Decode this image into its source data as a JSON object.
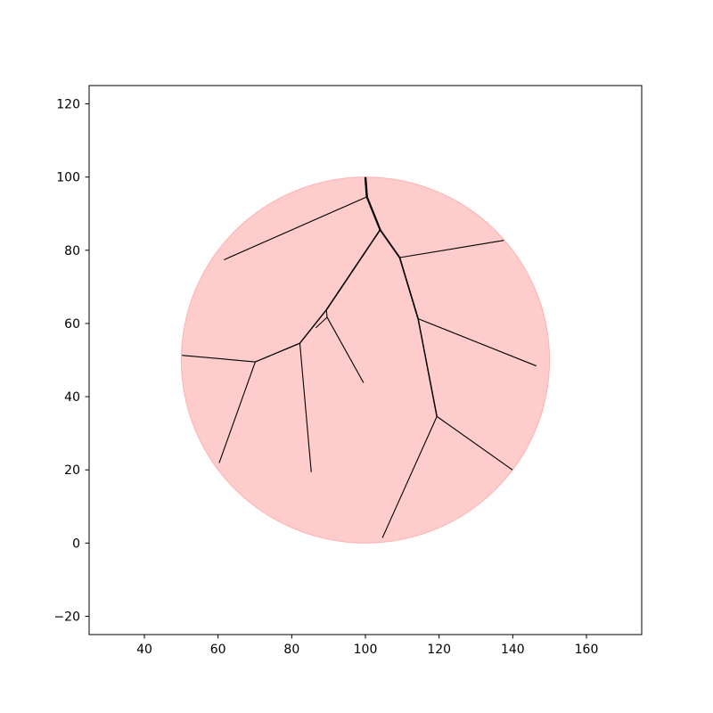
{
  "chart_data": {
    "type": "line",
    "title": "",
    "xlabel": "",
    "ylabel": "",
    "xlim": [
      25,
      175
    ],
    "ylim": [
      -25,
      125
    ],
    "grid": false,
    "xticks": [
      40,
      60,
      80,
      100,
      120,
      140,
      160
    ],
    "yticks": [
      -20,
      0,
      20,
      40,
      60,
      80,
      100,
      120
    ],
    "xtick_labels": [
      "40",
      "60",
      "80",
      "100",
      "120",
      "140",
      "160"
    ],
    "ytick_labels": [
      "−20",
      "0",
      "20",
      "40",
      "60",
      "80",
      "100",
      "120"
    ],
    "circle": {
      "cx": 100,
      "cy": 50,
      "r": 50,
      "fill": "#ff0000",
      "fill_opacity": 0.2
    },
    "branches": [
      {
        "id": "trunk-1",
        "points": [
          [
            100,
            100
          ],
          [
            100.4,
            94.6
          ]
        ],
        "weight": 2.4
      },
      {
        "id": "trunk-2",
        "points": [
          [
            100.4,
            94.6
          ],
          [
            104,
            85.6
          ]
        ],
        "weight": 2.2
      },
      {
        "id": "trunk-3",
        "points": [
          [
            104,
            85.6
          ],
          [
            109.3,
            78
          ]
        ],
        "weight": 1.9
      },
      {
        "id": "trunk-4",
        "points": [
          [
            109.3,
            78
          ],
          [
            114.3,
            61.3
          ]
        ],
        "weight": 1.7
      },
      {
        "id": "trunk-5",
        "points": [
          [
            114.3,
            61.3
          ],
          [
            119.4,
            34.6
          ]
        ],
        "weight": 1.5
      },
      {
        "id": "branch-ul",
        "points": [
          [
            100.4,
            94.6
          ],
          [
            61.6,
            77.4
          ]
        ],
        "weight": 1.1
      },
      {
        "id": "branch-upper-right",
        "points": [
          [
            109.3,
            78
          ],
          [
            137.6,
            82.7
          ]
        ],
        "weight": 1.1
      },
      {
        "id": "branch-mid-right",
        "points": [
          [
            114.3,
            61.3
          ],
          [
            146.4,
            48.4
          ]
        ],
        "weight": 1.1
      },
      {
        "id": "branch-lower-right",
        "points": [
          [
            119.4,
            34.6
          ],
          [
            139.9,
            20
          ]
        ],
        "weight": 1.1
      },
      {
        "id": "branch-bottom",
        "points": [
          [
            119.4,
            34.6
          ],
          [
            104.6,
            1.4
          ]
        ],
        "weight": 1.1
      },
      {
        "id": "branch-left-trunk",
        "points": [
          [
            104,
            85.6
          ],
          [
            89.4,
            63.7
          ]
        ],
        "weight": 1.6
      },
      {
        "id": "branch-left-a",
        "points": [
          [
            89.4,
            63.7
          ],
          [
            82.2,
            54.6
          ]
        ],
        "weight": 1.4
      },
      {
        "id": "branch-left-b",
        "points": [
          [
            82.2,
            54.6
          ],
          [
            70.1,
            49.5
          ]
        ],
        "weight": 1.3
      },
      {
        "id": "branch-far-left",
        "points": [
          [
            70.1,
            49.5
          ],
          [
            50.2,
            51.3
          ]
        ],
        "weight": 1.1
      },
      {
        "id": "branch-lower-left",
        "points": [
          [
            70.1,
            49.5
          ],
          [
            60.3,
            21.9
          ]
        ],
        "weight": 1.1
      },
      {
        "id": "branch-down-85",
        "points": [
          [
            82.2,
            54.6
          ],
          [
            85.3,
            19.4
          ]
        ],
        "weight": 1.1
      },
      {
        "id": "branch-center-stem",
        "points": [
          [
            89.4,
            63.7
          ],
          [
            89.6,
            61.7
          ]
        ],
        "weight": 1.1
      },
      {
        "id": "branch-center",
        "points": [
          [
            89.6,
            61.7
          ],
          [
            99.5,
            43.8
          ]
        ],
        "weight": 1.1
      },
      {
        "id": "branch-twig",
        "points": [
          [
            89.6,
            61.7
          ],
          [
            86.5,
            58.8
          ]
        ],
        "weight": 1.0
      }
    ]
  }
}
